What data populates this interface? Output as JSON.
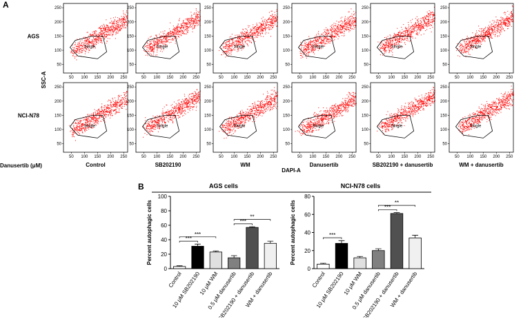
{
  "flow": {
    "panel_label": "A",
    "row_labels": [
      "AGS",
      "NCI-N78"
    ],
    "column_labels": [
      "Control",
      "SB202190",
      "WM",
      "Danusertib",
      "SB202190 + danusertib",
      "WM + danusertib"
    ],
    "row_axis_title": "Danusertib (μM)",
    "y_axis_title": "SSC-A",
    "x_axis_title": "DAPI-A",
    "gate_label": "Single",
    "xlim": [
      20,
      265
    ],
    "ylim": [
      20,
      265
    ],
    "xticks": [
      50,
      100,
      150,
      200,
      250
    ],
    "yticks": [
      50,
      100,
      150,
      200,
      250
    ]
  },
  "panel_b_label": "B",
  "chart_data": [
    {
      "type": "bar",
      "title": "AGS cells",
      "y_label": "Percent autophagic cells",
      "categories": [
        "Control",
        "10 μM SB202190",
        "10 μM WM",
        "0.5 μM danusertib",
        "SB202190 + danusertib",
        "WM + danusertib"
      ],
      "values": [
        3,
        31,
        23,
        15,
        57,
        35
      ],
      "errors": [
        1,
        3,
        1.5,
        3,
        1,
        3
      ],
      "colors": [
        "#ffffff",
        "#000000",
        "#e0e0e0",
        "#808080",
        "#505050",
        "#f0f0f0"
      ],
      "ylim": [
        0,
        100
      ],
      "yticks": [
        0,
        20,
        40,
        60,
        80,
        100
      ],
      "annotations": [
        {
          "text": "***",
          "between": [
            "Control",
            "10 μM SB202190"
          ]
        },
        {
          "text": "***",
          "between": [
            "Control",
            "10 μM WM"
          ]
        },
        {
          "text": "***",
          "between": [
            "0.5 μM danusertib",
            "SB202190 + danusertib"
          ]
        },
        {
          "text": "**",
          "between": [
            "0.5 μM danusertib",
            "WM + danusertib"
          ]
        }
      ]
    },
    {
      "type": "bar",
      "title": "NCI-N78 cells",
      "y_label": "Percent autophagic cells",
      "categories": [
        "Control",
        "10 μM SB202190",
        "10 μM WM",
        "0.5 μM danusertib",
        "SB202190 + danusertib",
        "WM + danusertib"
      ],
      "values": [
        5,
        28,
        12,
        20,
        61,
        34
      ],
      "errors": [
        1,
        3,
        1.5,
        2,
        1,
        3
      ],
      "colors": [
        "#ffffff",
        "#000000",
        "#e0e0e0",
        "#808080",
        "#505050",
        "#f0f0f0"
      ],
      "ylim": [
        0,
        80
      ],
      "yticks": [
        0,
        20,
        40,
        60,
        80
      ],
      "annotations": [
        {
          "text": "***",
          "between": [
            "Control",
            "10 μM SB202190"
          ]
        },
        {
          "text": "***",
          "between": [
            "0.5 μM danusertib",
            "SB202190 + danusertib"
          ]
        },
        {
          "text": "**",
          "between": [
            "0.5 μM danusertib",
            "WM + danusertib"
          ]
        }
      ]
    }
  ]
}
